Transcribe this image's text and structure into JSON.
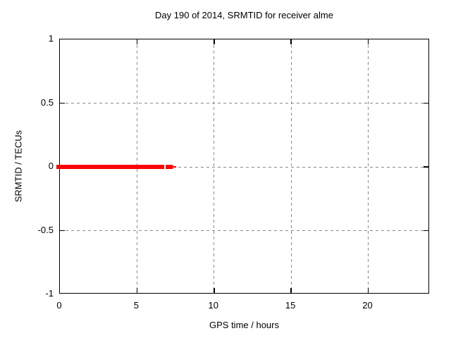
{
  "chart_data": {
    "type": "line",
    "title": "Day 190 of 2014, SRMTID for receiver alme",
    "xlabel": "GPS time / hours",
    "ylabel": "SRMTID / TECUs",
    "xlim": [
      0,
      24
    ],
    "ylim": [
      -1,
      1
    ],
    "grid": true,
    "legend": "none",
    "x_ticks": [
      {
        "label": "0",
        "value": 0
      },
      {
        "label": "5",
        "value": 5
      },
      {
        "label": "10",
        "value": 10
      },
      {
        "label": "15",
        "value": 15
      },
      {
        "label": "20",
        "value": 20
      }
    ],
    "y_ticks": [
      {
        "label": "1",
        "value": 1
      },
      {
        "label": "0.5",
        "value": 0.5
      },
      {
        "label": "0",
        "value": 0
      },
      {
        "label": "-0.5",
        "value": -0.5
      },
      {
        "label": "-1",
        "value": -1
      }
    ],
    "series": [
      {
        "name": "SRMTID",
        "style": "thick points at constant value",
        "color": "#ff0000",
        "y_value": 0,
        "segments_hours": [
          [
            0,
            6.76
          ],
          [
            6.86,
            7.31
          ]
        ],
        "thin_segments_hours": [
          [
            7.31,
            7.52
          ]
        ],
        "first_point_marker_overhang_px": 5
      }
    ],
    "colors": {
      "grid": "#8a8a8a",
      "border": "#000000",
      "text": "#000000",
      "background": "#ffffff"
    }
  }
}
